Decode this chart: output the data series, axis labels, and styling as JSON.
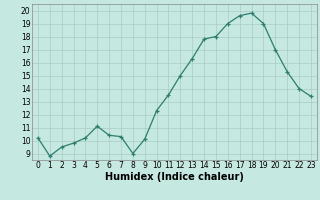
{
  "x": [
    0,
    1,
    2,
    3,
    4,
    5,
    6,
    7,
    8,
    9,
    10,
    11,
    12,
    13,
    14,
    15,
    16,
    17,
    18,
    19,
    20,
    21,
    22,
    23
  ],
  "y": [
    10.2,
    8.8,
    9.5,
    9.8,
    10.2,
    11.1,
    10.4,
    10.3,
    9.0,
    10.1,
    12.3,
    13.5,
    15.0,
    16.3,
    17.8,
    18.0,
    19.0,
    19.6,
    19.8,
    19.0,
    17.0,
    15.3,
    14.0,
    13.4
  ],
  "xlabel": "Humidex (Indice chaleur)",
  "xlim": [
    -0.5,
    23.5
  ],
  "ylim": [
    8.5,
    20.5
  ],
  "yticks": [
    9,
    10,
    11,
    12,
    13,
    14,
    15,
    16,
    17,
    18,
    19,
    20
  ],
  "xticks": [
    0,
    1,
    2,
    3,
    4,
    5,
    6,
    7,
    8,
    9,
    10,
    11,
    12,
    13,
    14,
    15,
    16,
    17,
    18,
    19,
    20,
    21,
    22,
    23
  ],
  "line_color": "#2e7d6e",
  "marker_color": "#2e7d6e",
  "bg_color": "#c5e8e0",
  "grid_color": "#aaccc4",
  "xlabel_fontsize": 7,
  "tick_fontsize": 5.5
}
